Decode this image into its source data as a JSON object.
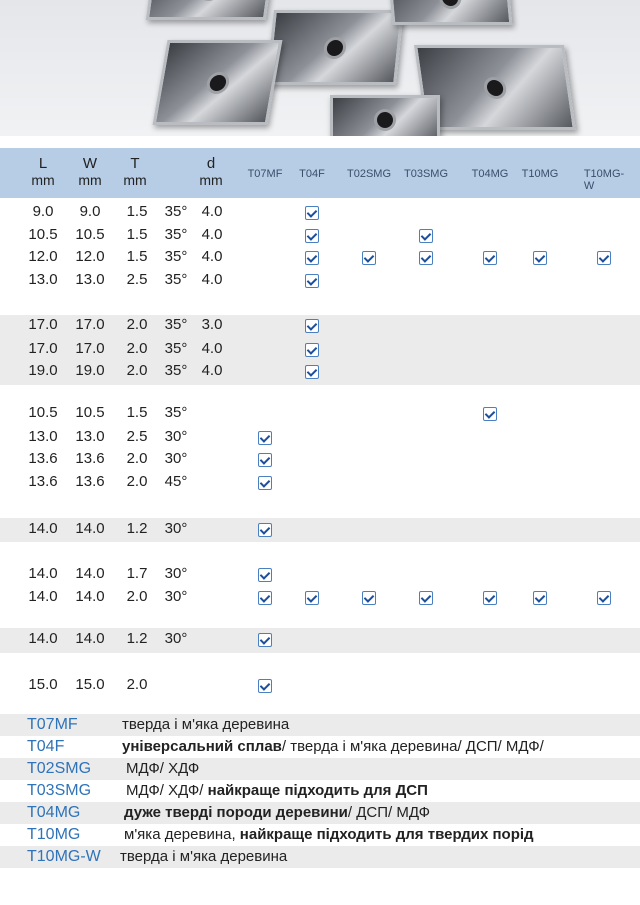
{
  "header": {
    "columns": [
      {
        "top": "L",
        "bottom": "mm"
      },
      {
        "top": "W",
        "bottom": "mm"
      },
      {
        "top": "T",
        "bottom": "mm"
      },
      {
        "top": "d",
        "bottom": "mm"
      }
    ],
    "grades": [
      "T07MF",
      "T04F",
      "T02SMG",
      "T03SMG",
      "T04MG",
      "T10MG",
      "T10MG-W"
    ]
  },
  "groups": [
    {
      "shade": false,
      "rows": [
        {
          "L": "9.0",
          "W": "9.0",
          "T": "1.5",
          "angle": "35°",
          "d": "4.0",
          "checks": [
            0,
            1,
            0,
            0,
            0,
            0,
            0
          ]
        },
        {
          "L": "10.5",
          "W": "10.5",
          "T": "1.5",
          "angle": "35°",
          "d": "4.0",
          "checks": [
            0,
            1,
            0,
            1,
            0,
            0,
            0
          ]
        },
        {
          "L": "12.0",
          "W": "12.0",
          "T": "1.5",
          "angle": "35°",
          "d": "4.0",
          "checks": [
            0,
            1,
            1,
            1,
            1,
            1,
            1
          ]
        },
        {
          "L": "13.0",
          "W": "13.0",
          "T": "2.5",
          "angle": "35°",
          "d": "4.0",
          "checks": [
            0,
            1,
            0,
            0,
            0,
            0,
            0
          ]
        }
      ]
    },
    {
      "shade": true,
      "rows": [
        {
          "L": "17.0",
          "W": "17.0",
          "T": "2.0",
          "angle": "35°",
          "d": "3.0",
          "checks": [
            0,
            1,
            0,
            0,
            0,
            0,
            0
          ]
        },
        {
          "L": "17.0",
          "W": "17.0",
          "T": "2.0",
          "angle": "35°",
          "d": "4.0",
          "checks": [
            0,
            1,
            0,
            0,
            0,
            0,
            0
          ]
        },
        {
          "L": "19.0",
          "W": "19.0",
          "T": "2.0",
          "angle": "35°",
          "d": "4.0",
          "checks": [
            0,
            1,
            0,
            0,
            0,
            0,
            0
          ]
        }
      ]
    },
    {
      "shade": false,
      "rows": [
        {
          "L": "10.5",
          "W": "10.5",
          "T": "1.5",
          "angle": "35°",
          "d": "",
          "checks": [
            0,
            0,
            0,
            0,
            1,
            0,
            0
          ]
        },
        {
          "L": "13.0",
          "W": "13.0",
          "T": "2.5",
          "angle": "30°",
          "d": "",
          "checks": [
            1,
            0,
            0,
            0,
            0,
            0,
            0
          ]
        },
        {
          "L": "13.6",
          "W": "13.6",
          "T": "2.0",
          "angle": "30°",
          "d": "",
          "checks": [
            1,
            0,
            0,
            0,
            0,
            0,
            0
          ]
        },
        {
          "L": "13.6",
          "W": "13.6",
          "T": "2.0",
          "angle": "45°",
          "d": "",
          "checks": [
            1,
            0,
            0,
            0,
            0,
            0,
            0
          ]
        }
      ]
    },
    {
      "shade": true,
      "rows": [
        {
          "L": "14.0",
          "W": "14.0",
          "T": "1.2",
          "angle": "30°",
          "d": "",
          "checks": [
            1,
            0,
            0,
            0,
            0,
            0,
            0
          ]
        }
      ]
    },
    {
      "shade": false,
      "rows": [
        {
          "L": "14.0",
          "W": "14.0",
          "T": "1.7",
          "angle": "30°",
          "d": "",
          "checks": [
            1,
            0,
            0,
            0,
            0,
            0,
            0
          ]
        },
        {
          "L": "14.0",
          "W": "14.0",
          "T": "2.0",
          "angle": "30°",
          "d": "",
          "checks": [
            1,
            1,
            1,
            1,
            1,
            1,
            1
          ]
        }
      ]
    },
    {
      "shade": true,
      "rows": [
        {
          "L": "14.0",
          "W": "14.0",
          "T": "1.2",
          "angle": "30°",
          "d": "",
          "checks": [
            1,
            0,
            0,
            0,
            0,
            0,
            0
          ]
        }
      ]
    },
    {
      "shade": false,
      "rows": [
        {
          "L": "15.0",
          "W": "15.0",
          "T": "2.0",
          "angle": "",
          "d": "",
          "checks": [
            1,
            0,
            0,
            0,
            0,
            0,
            0
          ]
        }
      ]
    }
  ],
  "legend": [
    {
      "code": "T07MF",
      "parts": [
        {
          "t": "тверда і м'яка деревина",
          "b": false
        }
      ]
    },
    {
      "code": "T04F",
      "parts": [
        {
          "t": "універсальний сплав",
          "b": true
        },
        {
          "t": "/ тверда і м'яка деревина/ ДСП/ МДФ/",
          "b": false
        }
      ]
    },
    {
      "code": "T02SMG",
      "parts": [
        {
          "t": "МДФ/ ХДФ",
          "b": false
        }
      ]
    },
    {
      "code": "T03SMG",
      "parts": [
        {
          "t": "МДФ/ ХДФ/ ",
          "b": false
        },
        {
          "t": "найкраще підходить для ДСП",
          "b": true
        }
      ]
    },
    {
      "code": "T04MG",
      "parts": [
        {
          "t": "дуже тверді породи деревини",
          "b": true
        },
        {
          "t": "/ ДСП/ МДФ",
          "b": false
        }
      ]
    },
    {
      "code": "T10MG",
      "parts": [
        {
          "t": "м'яка деревина, ",
          "b": false
        },
        {
          "t": "найкраще підходить для твердих порід",
          "b": true
        }
      ]
    },
    {
      "code": "T10MG-W",
      "parts": [
        {
          "t": "тверда і м'яка деревина",
          "b": false
        }
      ]
    }
  ]
}
